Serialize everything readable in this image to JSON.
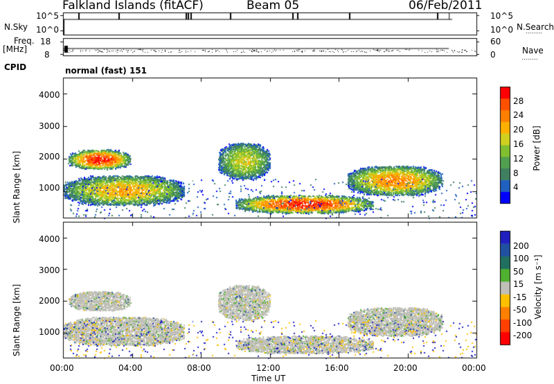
{
  "header": {
    "site": "Falkland Islands (fitACF)",
    "beam": "Beam 05",
    "date": "06/Feb/2011"
  },
  "panels": {
    "nsky_label": "N.Sky",
    "nsky_ticks": [
      "10^5",
      "10^0"
    ],
    "nsearch_label": "N.Search",
    "freq_label_1": "Freq.",
    "freq_label_2": "[MHz]",
    "freq_ticks": [
      "18",
      "8"
    ],
    "nave_label": "Nave",
    "nave_ticks": [
      "60",
      "0"
    ],
    "cpid_label": "CPID",
    "cpid_value": "normal (fast) 151"
  },
  "colorbars": {
    "power": {
      "label": "Power [dB]",
      "ticks": [
        "28",
        "24",
        "20",
        "16",
        "12",
        "8",
        "4"
      ],
      "colors": [
        "#0000ff",
        "#2060c0",
        "#408060",
        "#50a050",
        "#80c030",
        "#d0d020",
        "#ffb000",
        "#ff8000",
        "#ff5000",
        "#ff0000"
      ]
    },
    "velocity": {
      "label": "Velocity [m s⁻¹]",
      "ticks": [
        "200",
        "100",
        "50",
        "15",
        "-15",
        "-50",
        "-100",
        "-200"
      ],
      "colors": [
        "#2020c0",
        "#2050a0",
        "#207060",
        "#50b030",
        "#c0c0b8",
        "#ffc000",
        "#ff8000",
        "#ff4000",
        "#ff0000"
      ]
    }
  },
  "chart_data": {
    "type": "heatmap",
    "xlabel": "Time UT",
    "x_ticks": [
      "00:00",
      "04:00",
      "08:00",
      "12:00",
      "16:00",
      "20:00",
      "00:00"
    ],
    "xlim_hours": [
      0,
      24
    ],
    "ylabel": "Slant Range [km]",
    "y_ticks": [
      "1000",
      "2000",
      "3000",
      "4000"
    ],
    "ylim_km": [
      200,
      4500
    ],
    "regions": [
      {
        "t": [
          0.3,
          3.9
        ],
        "r": [
          1700,
          2300
        ],
        "power_db": 28,
        "velocity": 0
      },
      {
        "t": [
          0.0,
          7.0
        ],
        "r": [
          600,
          1500
        ],
        "power_db": 20,
        "velocity": 0
      },
      {
        "t": [
          9.0,
          12.0
        ],
        "r": [
          1400,
          2500
        ],
        "power_db": 16,
        "velocity": 0
      },
      {
        "t": [
          10.0,
          18.0
        ],
        "r": [
          350,
          900
        ],
        "power_db": 28,
        "velocity": 0
      },
      {
        "t": [
          16.5,
          22.0
        ],
        "r": [
          900,
          1800
        ],
        "power_db": 22,
        "velocity": 0
      }
    ]
  }
}
